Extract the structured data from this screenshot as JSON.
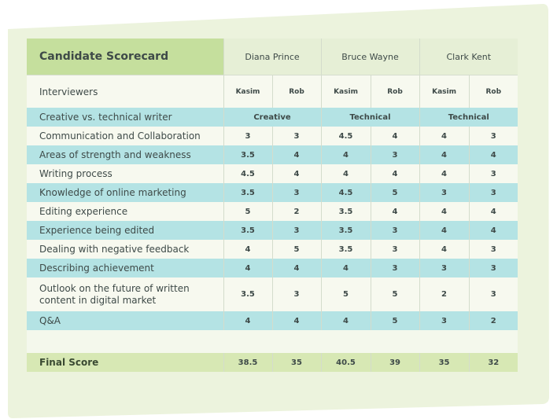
{
  "title": "Candidate Scorecard",
  "candidates": [
    "Diana Prince",
    "Bruce Wayne",
    "Clark Kent"
  ],
  "interviewers_label": "Interviewers",
  "interviewers": [
    "Kasim",
    "Rob",
    "Kasim",
    "Rob",
    "Kasim",
    "Rob"
  ],
  "type_row": {
    "label": "Creative vs. technical writer",
    "values": [
      "Creative",
      "Technical",
      "Technical"
    ]
  },
  "rows": [
    {
      "label": "Communication and Collaboration",
      "values": [
        "3",
        "3",
        "4.5",
        "4",
        "4",
        "3"
      ]
    },
    {
      "label": "Areas of strength and weakness",
      "values": [
        "3.5",
        "4",
        "4",
        "3",
        "4",
        "4"
      ]
    },
    {
      "label": "Writing process",
      "values": [
        "4.5",
        "4",
        "4",
        "4",
        "4",
        "3"
      ]
    },
    {
      "label": "Knowledge of online marketing",
      "values": [
        "3.5",
        "3",
        "4.5",
        "5",
        "3",
        "3"
      ]
    },
    {
      "label": "Editing experience",
      "values": [
        "5",
        "2",
        "3.5",
        "4",
        "4",
        "4"
      ]
    },
    {
      "label": "Experience being edited",
      "values": [
        "3.5",
        "3",
        "3.5",
        "3",
        "4",
        "4"
      ]
    },
    {
      "label": "Dealing with negative feedback",
      "values": [
        "4",
        "5",
        "3.5",
        "3",
        "4",
        "3"
      ]
    },
    {
      "label": "Describing achievement",
      "values": [
        "4",
        "4",
        "4",
        "3",
        "3",
        "3"
      ]
    },
    {
      "label": "Outlook on the future of written content in digital market",
      "values": [
        "3.5",
        "3",
        "5",
        "5",
        "2",
        "3"
      ]
    },
    {
      "label": "Q&A",
      "values": [
        "4",
        "4",
        "4",
        "5",
        "3",
        "2"
      ]
    }
  ],
  "final": {
    "label": "Final Score",
    "values": [
      "38.5",
      "35",
      "40.5",
      "39",
      "35",
      "32"
    ]
  },
  "colors": {
    "card_background": "#ecf3dd",
    "title_fill": "#c5df9d",
    "row_band": "#b4e3e4",
    "final_fill": "#d7e8b4"
  }
}
